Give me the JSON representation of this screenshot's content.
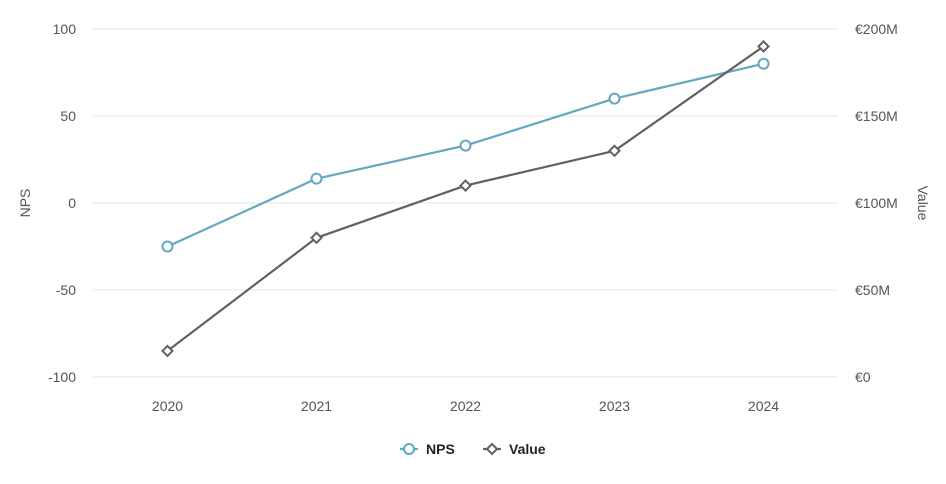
{
  "chart_data": {
    "type": "line",
    "categories": [
      "2020",
      "2021",
      "2022",
      "2023",
      "2024"
    ],
    "y_left": {
      "label": "NPS",
      "ylim": [
        -100,
        100
      ],
      "ticks": [
        -100,
        -50,
        0,
        50,
        100
      ],
      "tick_labels": [
        "-100",
        "-50",
        "0",
        "50",
        "100"
      ]
    },
    "y_right": {
      "label": "Value",
      "ylim": [
        0,
        200
      ],
      "unit": "€M",
      "ticks": [
        0,
        50,
        100,
        150,
        200
      ],
      "tick_labels": [
        "€0",
        "€50M",
        "€100M",
        "€150M",
        "€200M"
      ]
    },
    "series": [
      {
        "name": "NPS",
        "axis": "left",
        "values": [
          -25,
          14,
          33,
          60,
          80
        ],
        "color": "#62a8c0",
        "marker": "circle"
      },
      {
        "name": "Value",
        "axis": "right",
        "values": [
          15,
          80,
          110,
          130,
          190
        ],
        "color": "#616161",
        "marker": "diamond"
      }
    ],
    "grid": true,
    "legend": "bottom-center"
  }
}
